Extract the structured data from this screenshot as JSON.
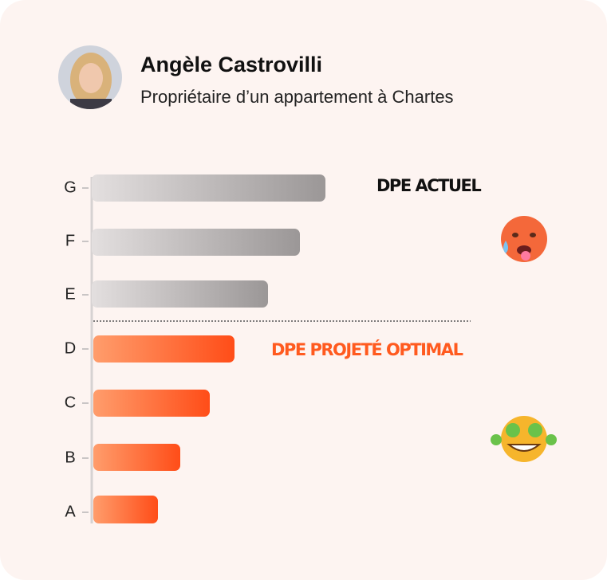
{
  "profile": {
    "name": "Angèle Castrovilli",
    "subtitle": "Propriétaire d’un appartement à Chartes"
  },
  "classes": [
    "G",
    "F",
    "E",
    "D",
    "C",
    "B",
    "A"
  ],
  "labels": {
    "current": "DPE ACTUEL",
    "projected": "DPE PROJETÉ OPTIMAL"
  }
}
